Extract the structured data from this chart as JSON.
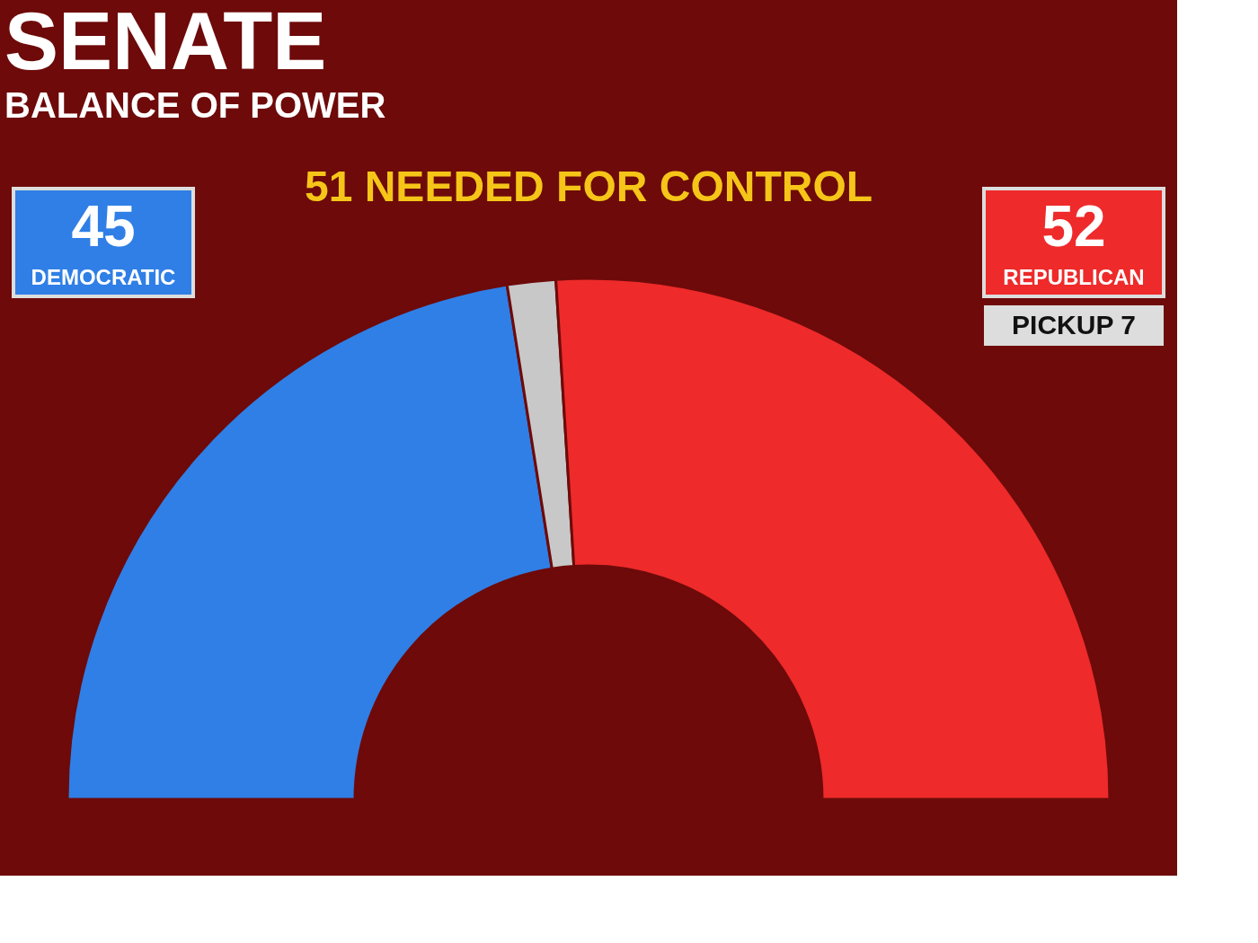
{
  "chart_data": {
    "type": "donut",
    "title": "SENATE",
    "subtitle": "BALANCE OF POWER",
    "categories": [
      "DEMOCRATIC",
      null,
      "REPUBLICAN"
    ],
    "values": [
      45,
      3,
      52
    ],
    "colors": [
      "#2f7fe6",
      "#c8c8c8",
      "#ee2a2a"
    ],
    "value_labels": [
      "45",
      null,
      "52"
    ],
    "annotations": [
      "51 NEEDED FOR CONTROL",
      "PICKUP 7"
    ]
  }
}
